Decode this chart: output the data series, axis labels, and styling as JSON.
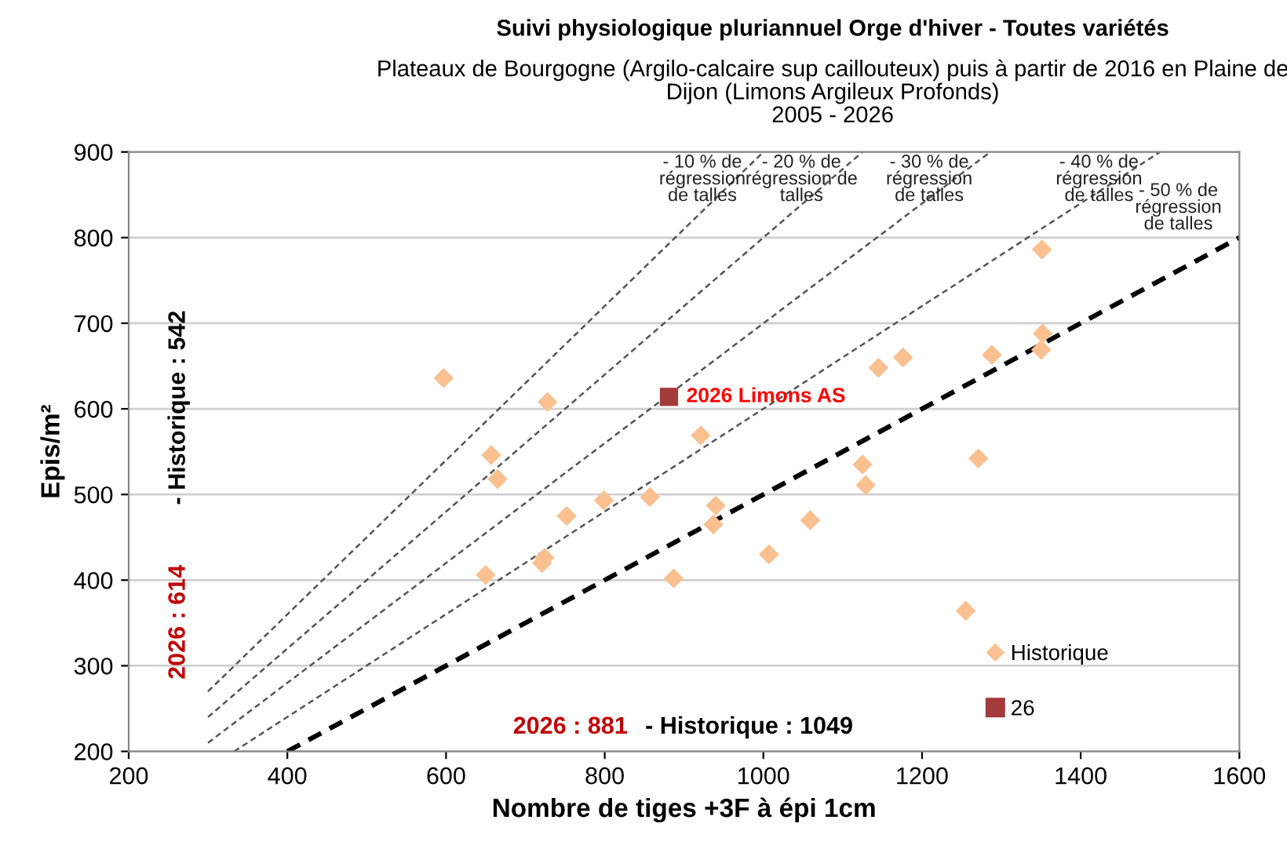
{
  "chart_data": {
    "type": "scatter",
    "title": "Suivi physiologique pluriannuel Orge d'hiver - Toutes variétés",
    "subtitle": "Plateaux de Bourgogne (Argilo-calcaire sup caillouteux) puis à partir de 2016 en Plaine de\nDijon (Limons Argileux Profonds)\n2005 - 2026",
    "xlabel": "Nombre de tiges +3F à épi 1cm",
    "ylabel": "Epis/m²",
    "xlim": [
      200,
      1600
    ],
    "xticks": [
      200,
      400,
      600,
      800,
      1000,
      1200,
      1400,
      1600
    ],
    "ylim": [
      200,
      900
    ],
    "yticks": [
      200,
      300,
      400,
      500,
      600,
      700,
      800,
      900
    ],
    "grid": "y",
    "legend": "bottom right",
    "series": [
      {
        "type": "line",
        "color": "#555555",
        "line_style": "dashed",
        "marker": "none",
        "x": [
          300,
          1000
        ],
        "values": [
          270,
          900
        ]
      },
      {
        "type": "line",
        "color": "#555555",
        "line_style": "dashed",
        "marker": "none",
        "x": [
          300,
          1125
        ],
        "values": [
          240,
          900
        ]
      },
      {
        "type": "line",
        "color": "#555555",
        "line_style": "dashed",
        "marker": "none",
        "x": [
          300,
          1286
        ],
        "values": [
          210,
          900
        ]
      },
      {
        "type": "line",
        "color": "#555555",
        "line_style": "dashed",
        "marker": "none",
        "x": [
          333,
          1500
        ],
        "values": [
          200,
          900
        ]
      },
      {
        "type": "line",
        "color": "#000000",
        "line_style": "dashed",
        "marker": "none",
        "x": [
          400,
          1600
        ],
        "values": [
          200,
          800
        ]
      },
      {
        "name": "Historique",
        "color": "#fac090",
        "marker": "diamond",
        "x": [
          597,
          728,
          657,
          665,
          650,
          721,
          724,
          752,
          799,
          857,
          887,
          921,
          940,
          937,
          1007,
          1059,
          1125,
          1129,
          1145,
          1176,
          1288,
          1271,
          1255,
          1351,
          1352,
          1350
        ],
        "values": [
          636,
          608,
          546,
          518,
          406,
          420,
          426,
          475,
          493,
          497,
          402,
          569,
          487,
          465,
          430,
          470,
          535,
          511,
          648,
          660,
          663,
          542,
          364,
          786,
          688,
          669
        ]
      },
      {
        "name": "26",
        "color": "#a33b3b",
        "marker": "square",
        "x": [
          881
        ],
        "values": [
          614
        ]
      }
    ],
    "annotations": [
      "- 10 % de\nrégression\nde talles",
      "- 20 % de\nrégression de\ntalles",
      "- 30 % de\nrégression\nde talles",
      "- 40 % de\nrégression\nde talles",
      "- 50 % de\nrégression\nde talles",
      {
        "text": "2026 Limons AS",
        "x": 881,
        "y": 614
      },
      "2026 : 614",
      " - Historique : 542",
      "2026 : 881",
      "- Historique : 1049"
    ]
  }
}
